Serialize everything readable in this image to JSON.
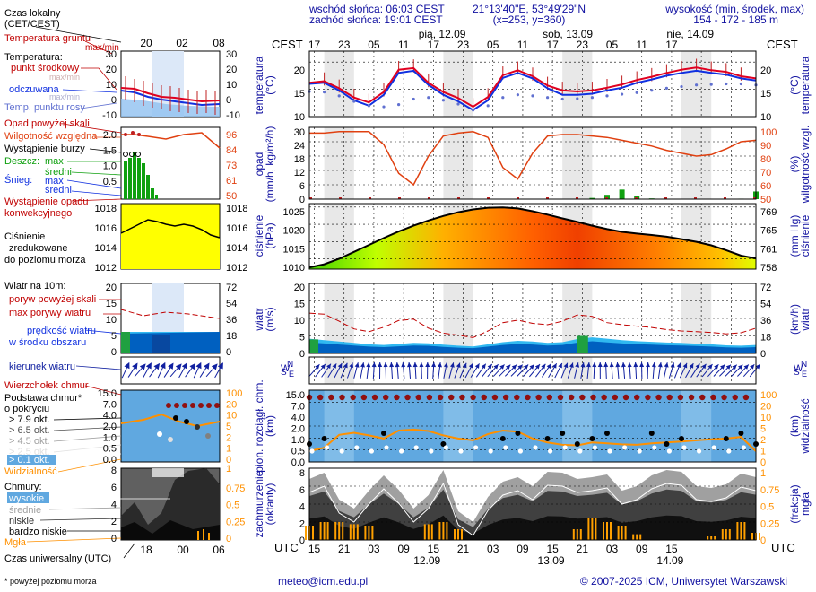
{
  "header": {
    "sunrise": "wschód słońca: 06:03 CEST",
    "sunset": "zachód słońca: 19:01 CEST",
    "coords": "21°13'40\"E, 53°49'29\"N",
    "grid": "(x=253,  y=360)",
    "altitude_label": "wysokość (min, środek, max)",
    "altitude_values": "154 - 172 - 185 m"
  },
  "legend": {
    "local_time": "Czas lokalny",
    "local_time_zone": "(CET/CEST)",
    "soil_temp": "Temperatura gruntu",
    "soil_temp_minmax": "max/min",
    "temperature": "Temperatura:",
    "mid_point": "punkt środkowy",
    "mid_point_minmax": "max/min",
    "perceived": "odczuwana",
    "perceived_minmax": "max/min",
    "dew_point": "Temp. punktu rosy",
    "precip_scale": "Opad powyżej skali",
    "humidity": "Wilgotność względna",
    "storm": "Wystąpienie burzy",
    "rain": "Deszcz:",
    "rain_max": "max",
    "rain_avg": "średni",
    "snow": "Śnieg:",
    "snow_max": "max",
    "snow_avg": "średni",
    "convective_1": "Wystąpienie opadu",
    "convective_2": "konwekcyjnego",
    "pressure_1": "Ciśnienie",
    "pressure_2": "zredukowane",
    "pressure_3": "do poziomu morza",
    "wind_10m": "Wiatr na 10m:",
    "gust_scale": "poryw powyżej skali",
    "gust_max": "max porywy wiatru",
    "wind_speed_1": "prędkość wiatru",
    "wind_speed_2": "w środku obszaru",
    "wind_dir": "kierunek wiatru",
    "cloud_top": "Wierzchołek chmur",
    "cloud_base_1": "Podstawa chmur*",
    "cloud_base_2": "o pokryciu",
    "okt_79": "> 7.9 okt.",
    "okt_65": "> 6.5 okt.",
    "okt_45": "> 4.5 okt.",
    "okt_25": "> 2.5 okt.",
    "okt_01": "> 0.1 okt.",
    "visibility": "Widzialność",
    "clouds": "Chmury:",
    "high": "wysokie",
    "medium": "średnie",
    "low": "niskie",
    "very_low": "bardzo niskie",
    "fog": "Mgła",
    "utc_time": "Czas uniwersalny (UTC)",
    "footnote": "* powyżej poziomu morza",
    "mini_local_ticks": [
      "20",
      "02",
      "08"
    ],
    "mini_utc_ticks": [
      "18",
      "00",
      "06"
    ]
  },
  "axes": {
    "cest": "CEST",
    "utc": "UTC",
    "cest_ticks": [
      "17",
      "23",
      "05",
      "11",
      "17",
      "23",
      "05",
      "11",
      "17",
      "23",
      "05",
      "11",
      "17"
    ],
    "utc_ticks": [
      "15",
      "21",
      "03",
      "09",
      "15",
      "21",
      "03",
      "09",
      "15",
      "21",
      "03",
      "09",
      "15"
    ],
    "day_labels_top": [
      "pią, 12.09",
      "sob, 13.09",
      "nie, 14.09"
    ],
    "day_labels_bottom": [
      "12.09",
      "13.09",
      "14.09"
    ],
    "panels": {
      "temperature": {
        "left": "temperatura",
        "unit": "(°C)",
        "right": "temperatura",
        "ticks": [
          "20",
          "15",
          "10"
        ]
      },
      "precip": {
        "left": "opad",
        "unit": "(mm/h, kg/m²/h)",
        "right_unit": "(%)",
        "right": "wilgotność wzgl.",
        "ticks": [
          "30",
          "24",
          "18",
          "12",
          "6",
          "0"
        ],
        "ticks_right": [
          "100",
          "90",
          "80",
          "70",
          "60",
          "50"
        ]
      },
      "pressure": {
        "left": "ciśnienie",
        "unit": "(hPa)",
        "right_unit": "(mm Hg)",
        "right": "ciśnienie",
        "ticks": [
          "1025",
          "1020",
          "1015",
          "1010"
        ],
        "ticks_right": [
          "769",
          "765",
          "761",
          "758"
        ]
      },
      "wind": {
        "left": "wiatr",
        "unit": "(m/s)",
        "right_unit": "(km/h)",
        "right": "wiatr",
        "ticks": [
          "20",
          "15",
          "10",
          "5",
          "0"
        ],
        "ticks_right": [
          "72",
          "54",
          "36",
          "18",
          "0"
        ]
      },
      "clouds_base": {
        "left_1": "pion. rozciągł. chm.",
        "left_2": "(km)",
        "right_1": "(km)",
        "right_2": "widzialność",
        "ticks": [
          "15.0",
          "7.0",
          "4.0",
          "2.0",
          "1.0",
          "0.5",
          "0.0"
        ],
        "ticks_right": [
          "100",
          "20",
          "10",
          "5",
          "2",
          "1",
          "0"
        ]
      },
      "cloud_cover": {
        "left_1": "zachmurzenie",
        "left_2": "(oktanty)",
        "right_1": "(frakcja)",
        "right_2": "mgła",
        "ticks": [
          "8",
          "6",
          "4",
          "2",
          "0"
        ],
        "ticks_right": [
          "1",
          "0.75",
          "0.5",
          "0.25",
          "0"
        ]
      }
    },
    "mini_ticks": {
      "temperature": [
        "30",
        "20",
        "10",
        "0",
        "-10"
      ],
      "precip": [
        "2.0",
        "1.5",
        "1.0",
        "0.5"
      ],
      "humidity": [
        "96",
        "84",
        "73",
        "61",
        "50"
      ],
      "pressure": [
        "1018",
        "1016",
        "1014",
        "1012"
      ],
      "wind": [
        "20",
        "15",
        "10",
        "5",
        "0"
      ],
      "wind_kmh": [
        "72",
        "54",
        "36",
        "18",
        "0"
      ],
      "cloud_km": [
        "15.0",
        "7.0",
        "4.0",
        "2.0",
        "1.0",
        "0.5",
        "0.0"
      ],
      "vis": [
        "100",
        "20",
        "10",
        "5",
        "2",
        "1",
        "0"
      ],
      "cover": [
        "8",
        "6",
        "4",
        "2",
        "0"
      ],
      "fog": [
        "1",
        "0.75",
        "0.5",
        "0.25",
        "0"
      ]
    },
    "compass": {
      "n": "N",
      "s": "S",
      "w": "W",
      "e": "E"
    }
  },
  "footer": {
    "email": "meteo@icm.edu.pl",
    "copyright": "© 2007-2025 ICM, Uniwersytet Warszawski"
  },
  "colors": {
    "temp_line": "#e00020",
    "perceived_line": "#1030e0",
    "dew_point": "#6070d0",
    "humidity_line": "#e04010",
    "rain_bar": "#10a010",
    "pressure_line": "#000000",
    "gust_line": "#c00000",
    "wind_band": "#0060c0",
    "cloud_top_dot": "#901010",
    "cloud_panel_bg": "#60a8e0",
    "fog_bar": "#ffa000",
    "night_band": "#e8e8e8"
  },
  "chart_data": {
    "type": "line",
    "time_axis_utc_hours": [
      14,
      17,
      20,
      23,
      26,
      29,
      32,
      35,
      38,
      41,
      44,
      47,
      50,
      53,
      56,
      59,
      62,
      65,
      68,
      71,
      74,
      77,
      80,
      83,
      86,
      89,
      92,
      95,
      98,
      101,
      104
    ],
    "temperature_c": [
      16.2,
      16.5,
      15.2,
      13.5,
      12.6,
      14.5,
      18.6,
      18.9,
      16.2,
      14.5,
      13.4,
      11.8,
      13.6,
      17.6,
      18.5,
      17.4,
      15.7,
      14.8,
      14.6,
      14.8,
      15.3,
      15.9,
      16.7,
      17.3,
      18.0,
      18.6,
      19.0,
      18.5,
      18.2,
      17.4,
      17.0
    ],
    "perceived_c": [
      16.0,
      16.2,
      14.8,
      13.0,
      12.0,
      14.0,
      18.0,
      18.4,
      15.8,
      14.0,
      12.8,
      11.2,
      13.0,
      17.1,
      18.0,
      17.0,
      15.2,
      14.0,
      14.0,
      14.2,
      14.8,
      15.3,
      16.2,
      16.8,
      17.5,
      18.0,
      18.4,
      18.0,
      17.7,
      17.0,
      16.6
    ],
    "dew_point_c": [
      14.6,
      14.5,
      13.8,
      12.8,
      12.0,
      11.8,
      12.2,
      13.2,
      13.5,
      13.0,
      12.3,
      11.2,
      12.0,
      13.5,
      14.0,
      13.8,
      13.5,
      13.2,
      13.3,
      13.5,
      13.8,
      14.1,
      14.4,
      14.8,
      15.2,
      15.5,
      15.8,
      15.9,
      16.0,
      16.0,
      15.8
    ],
    "humidity_pct": [
      96,
      96,
      97,
      97,
      97,
      88,
      68,
      60,
      80,
      94,
      96,
      97,
      93,
      72,
      64,
      82,
      94,
      95,
      95,
      94,
      93,
      91,
      89,
      87,
      84,
      82,
      80,
      81,
      85,
      90,
      91
    ],
    "precip_mm_h": [
      0,
      0,
      0,
      0,
      0,
      0,
      0,
      0,
      0,
      0,
      0,
      0,
      0,
      0,
      0,
      0,
      0,
      0,
      0,
      0.5,
      1.8,
      4.0,
      1.2,
      0.3,
      0,
      0,
      0,
      0,
      0,
      0.2,
      3.2
    ],
    "pressure_hpa": [
      1007.5,
      1008.4,
      1010.0,
      1012.0,
      1014.0,
      1016.0,
      1017.9,
      1019.6,
      1021.1,
      1022.4,
      1023.5,
      1024.3,
      1024.8,
      1024.9,
      1024.6,
      1023.8,
      1022.8,
      1021.7,
      1020.7,
      1019.6,
      1018.6,
      1017.8,
      1017.3,
      1016.9,
      1016.4,
      1015.7,
      1014.9,
      1013.9,
      1012.5,
      1010.9,
      1010.1
    ],
    "wind_speed_ms": [
      4.2,
      3.8,
      3.4,
      3.0,
      2.6,
      2.4,
      2.7,
      3.0,
      2.9,
      2.5,
      2.2,
      2.0,
      2.6,
      3.2,
      3.6,
      3.4,
      3.0,
      3.2,
      4.1,
      4.6,
      4.2,
      3.8,
      3.5,
      3.3,
      3.1,
      3.0,
      2.8,
      2.6,
      2.3,
      2.2,
      2.4
    ],
    "wind_gust_ms": [
      11.5,
      11.2,
      9.2,
      7.0,
      6.2,
      7.5,
      9.4,
      9.8,
      7.2,
      5.8,
      5.2,
      4.5,
      6.4,
      8.8,
      9.5,
      8.6,
      8.2,
      9.2,
      11.0,
      10.6,
      8.8,
      8.2,
      7.8,
      7.4,
      6.8,
      6.4,
      6.2,
      6.0,
      5.6,
      5.9,
      7.2
    ],
    "cloud_top_km": [
      15,
      15,
      15,
      15,
      15,
      15,
      15,
      15,
      15,
      15,
      15,
      15,
      15,
      15,
      15,
      15,
      15,
      15,
      15,
      15,
      15,
      15,
      15,
      15,
      15,
      15,
      15,
      15,
      15,
      15,
      15
    ],
    "visibility_km": [
      1.5,
      2.0,
      5.2,
      6.0,
      5.0,
      4.0,
      7.0,
      7.5,
      6.8,
      5.0,
      4.0,
      3.5,
      5.5,
      7.0,
      6.5,
      4.0,
      3.0,
      2.5,
      2.4,
      3.0,
      2.8,
      2.6,
      2.5,
      2.8,
      3.0,
      3.2,
      3.5,
      3.8,
      4.0,
      4.5,
      1.5
    ],
    "cloud_cover_okt": [
      6.8,
      7.5,
      4.5,
      3.5,
      5.5,
      7.2,
      5.6,
      3.5,
      5.0,
      7.8,
      3.2,
      2.0,
      4.8,
      6.5,
      7.0,
      6.0,
      7.6,
      7.5,
      6.8,
      7.0,
      7.3,
      5.5,
      6.0,
      7.2,
      7.8,
      7.6,
      6.0,
      5.8,
      6.2,
      7.4,
      7.0
    ],
    "fog_fraction": [
      0.2,
      0.25,
      0.25,
      0.22,
      0.2,
      0,
      0,
      0,
      0.22,
      0.25,
      0.15,
      0,
      0,
      0,
      0,
      0,
      0,
      0,
      0.15,
      0.3,
      0.25,
      0.2,
      0.08,
      0,
      0,
      0,
      0,
      0.05,
      0.15,
      0.25,
      0.1
    ],
    "ylim_temperature": [
      10,
      22
    ],
    "ylim_precip": [
      0,
      30
    ],
    "ylim_humidity": [
      50,
      100
    ],
    "ylim_pressure": [
      1007,
      1026
    ],
    "ylim_wind": [
      0,
      20
    ],
    "ylim_cover": [
      0,
      8
    ]
  }
}
